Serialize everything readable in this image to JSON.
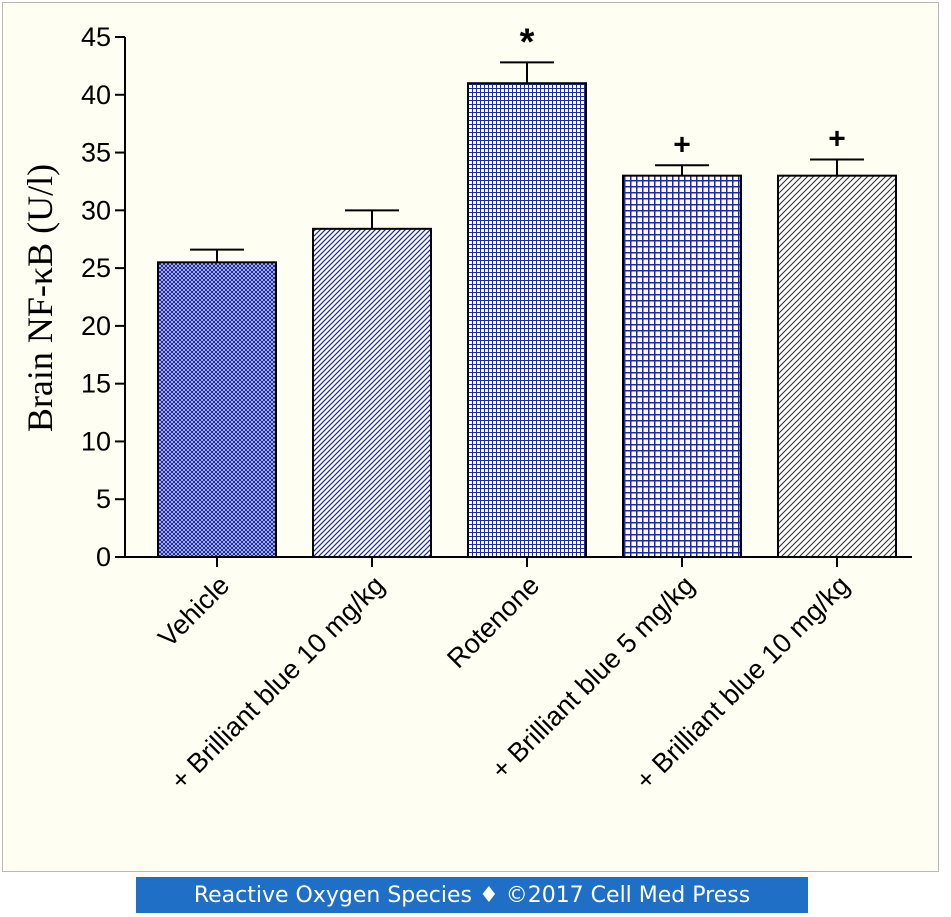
{
  "chart_data": {
    "type": "bar",
    "title": "",
    "ylabel": "Brain NF-κB (U/l)",
    "xlabel": "",
    "ylim": [
      0,
      45
    ],
    "yticks": [
      0,
      5,
      10,
      15,
      20,
      25,
      30,
      35,
      40,
      45
    ],
    "grid": false,
    "categories": [
      "Vehicle",
      "+ Brilliant blue 10 mg/kg",
      "Rotenone",
      "+ Brilliant blue 5 mg/kg",
      "+ Brilliant blue 10 mg/kg"
    ],
    "values": [
      25.5,
      28.4,
      41.0,
      33.0,
      33.0
    ],
    "errors": [
      1.1,
      1.6,
      1.8,
      0.9,
      1.4
    ],
    "significance": [
      "",
      "",
      "*",
      "+",
      "+"
    ],
    "bar_patterns": [
      "fine-crosshatch",
      "diagonal-lines",
      "grid-fine",
      "grid-coarse",
      "diagonal-lines-sparse"
    ],
    "colors": {
      "pattern": "#1a2aa8",
      "axis": "#000000",
      "hatch_gray": "#333333"
    }
  },
  "footer": {
    "text": "Reactive Oxygen Species ♦ ©2017 Cell Med Press"
  }
}
